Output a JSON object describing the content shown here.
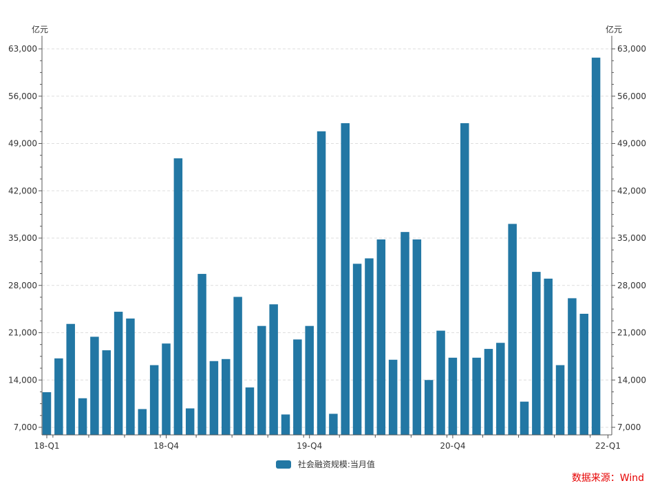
{
  "colors": {
    "bar": "#2277a4",
    "grid": "#dddddd",
    "axis": "#555555",
    "source": "#e60000"
  },
  "chart_data": {
    "type": "bar",
    "left_unit": "亿元",
    "right_unit": "亿元",
    "ylim": [
      7000,
      63000
    ],
    "yticks": [
      "7,000",
      "14,000",
      "21,000",
      "28,000",
      "35,000",
      "42,000",
      "49,000",
      "56,000",
      "63,000"
    ],
    "ytick_values": [
      7000,
      14000,
      21000,
      28000,
      35000,
      42000,
      49000,
      56000,
      63000
    ],
    "x_tick_labels": [
      {
        "index": 0,
        "label": "18-Q1"
      },
      {
        "index": 10,
        "label": "18-Q4"
      },
      {
        "index": 22,
        "label": "19-Q4"
      },
      {
        "index": 34,
        "label": "20-Q4"
      },
      {
        "index": 47,
        "label": "22-Q1"
      }
    ],
    "grid": true,
    "legend_position": "bottom-center",
    "series": [
      {
        "name": "社会融资规模:当月值",
        "values": [
          12200,
          17200,
          22300,
          11300,
          20400,
          18400,
          24100,
          23100,
          9700,
          16200,
          19400,
          46800,
          9800,
          29700,
          16800,
          17100,
          26300,
          12900,
          22000,
          25200,
          8900,
          20000,
          22000,
          50800,
          9000,
          52000,
          31200,
          32000,
          34800,
          17000,
          35900,
          34800,
          14000,
          21300,
          17300,
          52000,
          17300,
          18600,
          19500,
          37100,
          10800,
          30000,
          29000,
          16200,
          26100,
          23800,
          61700
        ]
      }
    ]
  },
  "legend": {
    "label": "社会融资规模:当月值"
  },
  "source": {
    "text": "数据来源：Wind"
  }
}
